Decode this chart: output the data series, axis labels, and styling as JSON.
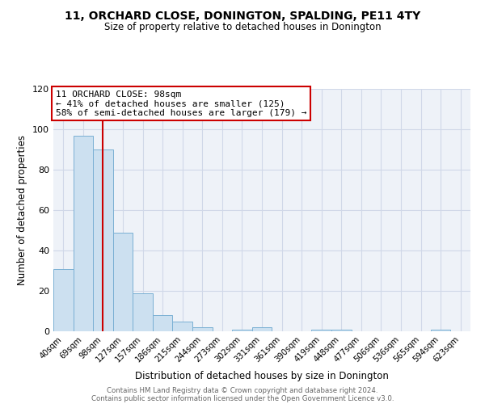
{
  "title": "11, ORCHARD CLOSE, DONINGTON, SPALDING, PE11 4TY",
  "subtitle": "Size of property relative to detached houses in Donington",
  "xlabel": "Distribution of detached houses by size in Donington",
  "ylabel": "Number of detached properties",
  "bar_labels": [
    "40sqm",
    "69sqm",
    "98sqm",
    "127sqm",
    "157sqm",
    "186sqm",
    "215sqm",
    "244sqm",
    "273sqm",
    "302sqm",
    "331sqm",
    "361sqm",
    "390sqm",
    "419sqm",
    "448sqm",
    "477sqm",
    "506sqm",
    "536sqm",
    "565sqm",
    "594sqm",
    "623sqm"
  ],
  "bar_heights": [
    31,
    97,
    90,
    49,
    19,
    8,
    5,
    2,
    0,
    1,
    2,
    0,
    0,
    1,
    1,
    0,
    0,
    0,
    0,
    1,
    0
  ],
  "bar_color": "#cce0f0",
  "bar_edge_color": "#7ab0d4",
  "vline_x": 2,
  "vline_color": "#cc0000",
  "annotation_box_text": "11 ORCHARD CLOSE: 98sqm\n← 41% of detached houses are smaller (125)\n58% of semi-detached houses are larger (179) →",
  "ylim": [
    0,
    120
  ],
  "yticks": [
    0,
    20,
    40,
    60,
    80,
    100,
    120
  ],
  "bg_color": "#eef2f8",
  "grid_color": "#d0d8e8",
  "footer_line1": "Contains HM Land Registry data © Crown copyright and database right 2024.",
  "footer_line2": "Contains public sector information licensed under the Open Government Licence v3.0."
}
